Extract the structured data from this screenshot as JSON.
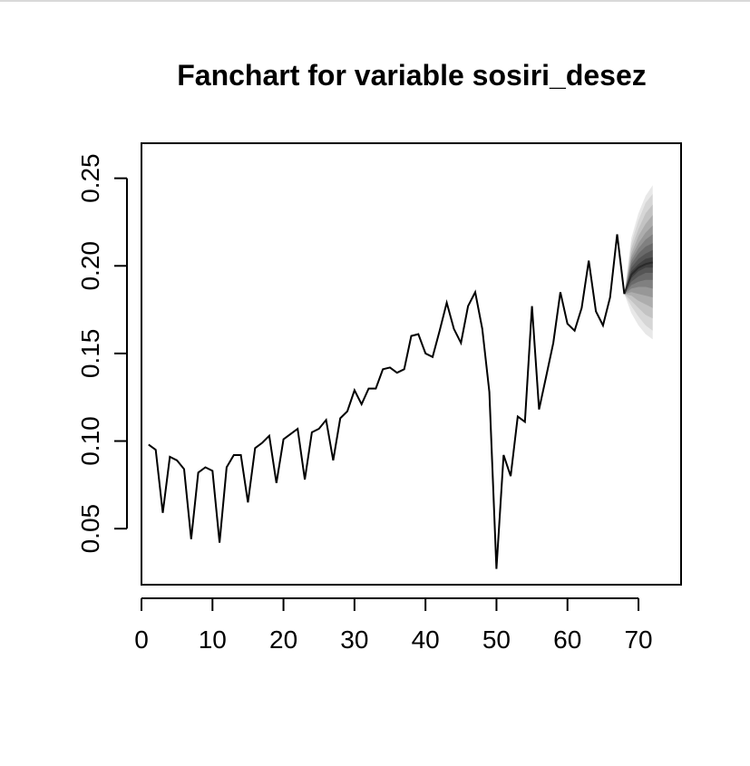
{
  "chart_data": {
    "type": "line",
    "title": "Fanchart for variable sosiri_desez",
    "xlabel": "",
    "ylabel": "",
    "xlim": [
      0,
      76
    ],
    "ylim": [
      0.018,
      0.27
    ],
    "x_ticks": [
      0,
      10,
      20,
      30,
      40,
      50,
      60,
      70
    ],
    "x_tick_labels": [
      "0",
      "10",
      "20",
      "30",
      "40",
      "50",
      "60",
      "70"
    ],
    "y_ticks": [
      0.05,
      0.1,
      0.15,
      0.2,
      0.25
    ],
    "y_tick_labels": [
      "0.05",
      "0.10",
      "0.15",
      "0.20",
      "0.25"
    ],
    "grid": false,
    "series": [
      {
        "x": [
          1,
          2,
          3,
          4,
          5,
          6,
          7,
          8,
          9,
          10,
          11,
          12,
          13,
          14,
          15,
          16,
          17,
          18,
          19,
          20,
          21,
          22,
          23,
          24,
          25,
          26,
          27,
          28,
          29,
          30,
          31,
          32,
          33,
          34,
          35,
          36,
          37,
          38,
          39,
          40,
          41,
          42,
          43,
          44,
          45,
          46,
          47,
          48,
          49,
          50,
          51,
          52,
          53,
          54,
          55,
          56,
          57,
          58,
          59,
          60,
          61,
          62,
          63,
          64,
          65,
          66,
          67,
          68
        ],
        "values": [
          0.098,
          0.095,
          0.059,
          0.091,
          0.089,
          0.084,
          0.044,
          0.082,
          0.085,
          0.083,
          0.042,
          0.085,
          0.092,
          0.092,
          0.065,
          0.096,
          0.099,
          0.103,
          0.076,
          0.101,
          0.104,
          0.107,
          0.078,
          0.105,
          0.107,
          0.112,
          0.089,
          0.113,
          0.117,
          0.129,
          0.121,
          0.13,
          0.13,
          0.141,
          0.142,
          0.139,
          0.141,
          0.16,
          0.161,
          0.15,
          0.148,
          0.163,
          0.179,
          0.164,
          0.156,
          0.177,
          0.185,
          0.164,
          0.128,
          0.027,
          0.092,
          0.08,
          0.114,
          0.111,
          0.177,
          0.118,
          0.137,
          0.156,
          0.185,
          0.167,
          0.163,
          0.176,
          0.203,
          0.174,
          0.166,
          0.182,
          0.218,
          0.184
        ],
        "color": "#000000"
      }
    ],
    "fan": {
      "x": [
        68,
        69,
        70,
        71,
        72
      ],
      "median": [
        0.184,
        0.195,
        0.199,
        0.201,
        0.202
      ],
      "bands": [
        {
          "level": 0.1,
          "lower": [
            0.184,
            0.193,
            0.197,
            0.199,
            0.199
          ],
          "upper": [
            0.184,
            0.197,
            0.201,
            0.204,
            0.205
          ],
          "color": "#404040"
        },
        {
          "level": 0.2,
          "lower": [
            0.184,
            0.191,
            0.194,
            0.196,
            0.196
          ],
          "upper": [
            0.184,
            0.199,
            0.204,
            0.207,
            0.209
          ],
          "color": "#555555"
        },
        {
          "level": 0.3,
          "lower": [
            0.184,
            0.189,
            0.191,
            0.192,
            0.192
          ],
          "upper": [
            0.184,
            0.201,
            0.207,
            0.211,
            0.213
          ],
          "color": "#6a6a6a"
        },
        {
          "level": 0.4,
          "lower": [
            0.184,
            0.187,
            0.188,
            0.188,
            0.187
          ],
          "upper": [
            0.184,
            0.203,
            0.21,
            0.215,
            0.218
          ],
          "color": "#808080"
        },
        {
          "level": 0.5,
          "lower": [
            0.184,
            0.185,
            0.184,
            0.183,
            0.182
          ],
          "upper": [
            0.184,
            0.205,
            0.213,
            0.219,
            0.223
          ],
          "color": "#979797"
        },
        {
          "level": 0.6,
          "lower": [
            0.184,
            0.183,
            0.18,
            0.178,
            0.176
          ],
          "upper": [
            0.184,
            0.207,
            0.217,
            0.224,
            0.229
          ],
          "color": "#adadad"
        },
        {
          "level": 0.7,
          "lower": [
            0.184,
            0.18,
            0.176,
            0.172,
            0.17
          ],
          "upper": [
            0.184,
            0.21,
            0.221,
            0.23,
            0.235
          ],
          "color": "#c3c3c3"
        },
        {
          "level": 0.8,
          "lower": [
            0.184,
            0.177,
            0.171,
            0.166,
            0.163
          ],
          "upper": [
            0.184,
            0.213,
            0.226,
            0.236,
            0.241
          ],
          "color": "#d6d6d6"
        },
        {
          "level": 0.9,
          "lower": [
            0.184,
            0.173,
            0.166,
            0.161,
            0.158
          ],
          "upper": [
            0.184,
            0.216,
            0.23,
            0.24,
            0.246
          ],
          "color": "#e8e8e8"
        }
      ]
    }
  }
}
